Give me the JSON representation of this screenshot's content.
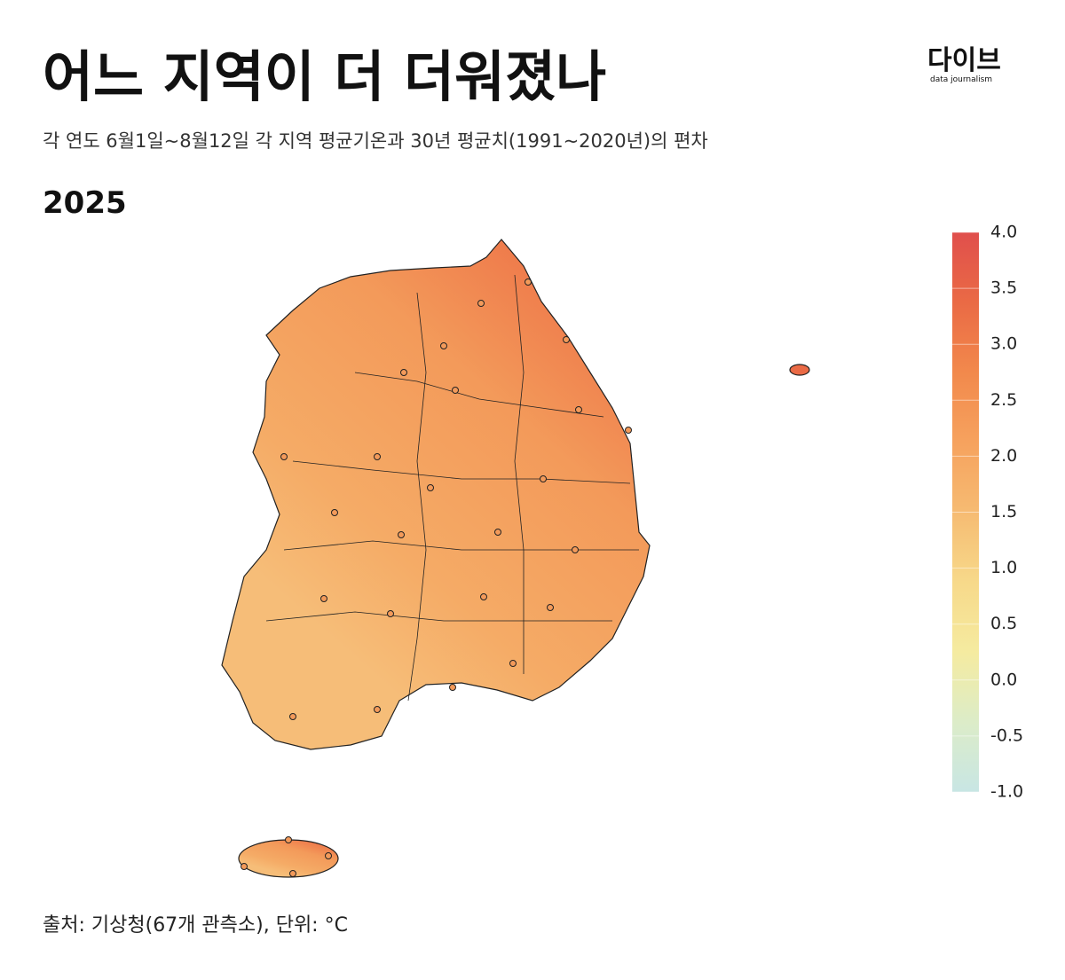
{
  "header": {
    "title": "어느 지역이 더 더워졌나",
    "subtitle": "각 연도 6월1일~8월12일 각 지역 평균기온과 30년 평균치(1991~2020년)의 편차",
    "year": "2025"
  },
  "logo": {
    "name": "다이브",
    "tagline": "data journalism"
  },
  "colorbar": {
    "range": [
      -1,
      4
    ],
    "colors": [
      "#c8e6e4",
      "#dcecc8",
      "#f5eba0",
      "#f7d98a",
      "#f6bb72",
      "#f6a25e",
      "#f2894c",
      "#ea6a45",
      "#e04f4c"
    ],
    "ticks": [
      {
        "value": 4,
        "label": "4.0"
      },
      {
        "value": 3.5,
        "label": "3.5"
      },
      {
        "value": 3,
        "label": "3.0"
      },
      {
        "value": 2.5,
        "label": "2.5"
      },
      {
        "value": 2,
        "label": "2.0"
      },
      {
        "value": 1.5,
        "label": "1.5"
      },
      {
        "value": 1,
        "label": "1.0"
      },
      {
        "value": 0.5,
        "label": "0.5"
      },
      {
        "value": 0,
        "label": "0.0"
      },
      {
        "value": -0.5,
        "label": "-0.5"
      },
      {
        "value": -1,
        "label": "-1.0"
      }
    ]
  },
  "footer": {
    "source": "출처: 기상청(67개 관측소), 단위: °C"
  }
}
